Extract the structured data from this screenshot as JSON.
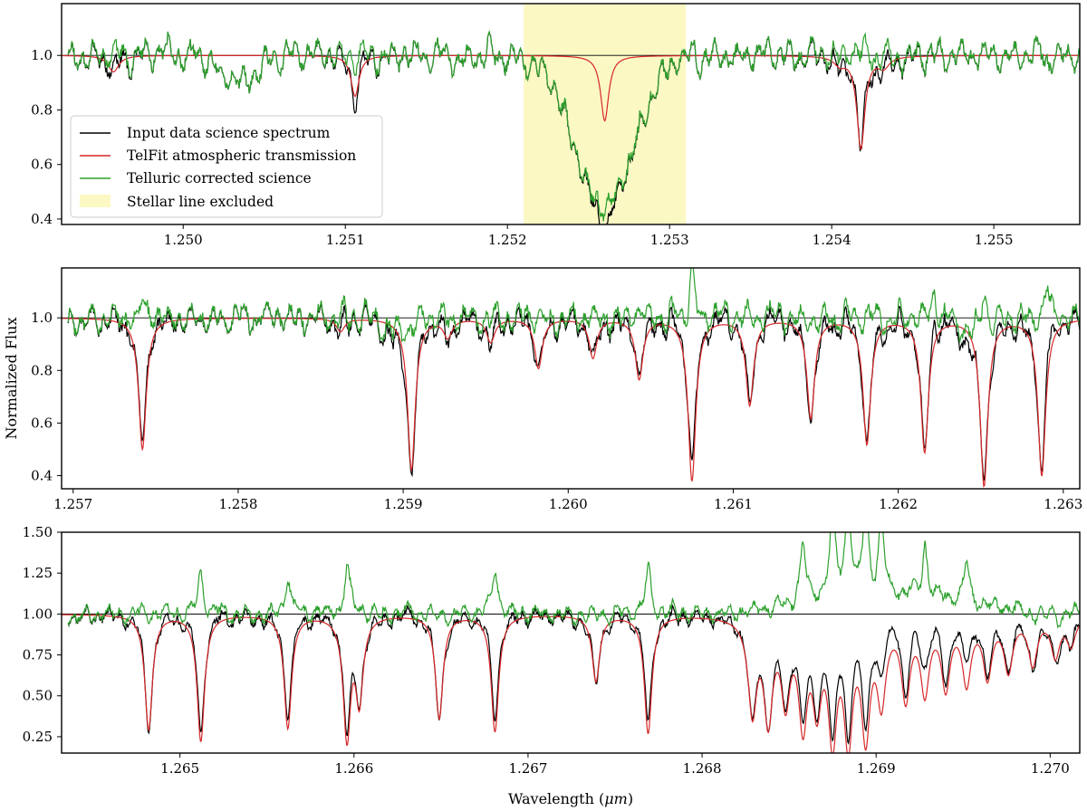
{
  "figure": {
    "ylabel": "Normalized Flux",
    "xlabel": "Wavelength (",
    "xlabel_unit": "μm",
    "xlabel_close": ")"
  },
  "legend": {
    "entries": [
      {
        "label": "Input data science spectrum",
        "color": "#000000"
      },
      {
        "label": "TelFit atmospheric transmission",
        "color": "#d62728"
      },
      {
        "label": "Telluric corrected science",
        "color": "#2ca02c"
      },
      {
        "label": "Stellar line excluded",
        "color": "#fdfbc8"
      }
    ]
  },
  "colors": {
    "data": "#000000",
    "model": "#d62728",
    "corrected": "#2ca02c",
    "excluded": "#fbf8c4"
  },
  "chart_data": [
    {
      "type": "line",
      "title": "",
      "xlim": [
        1.24925,
        1.25553
      ],
      "ylim": [
        0.38,
        1.19
      ],
      "xticks": [
        1.25,
        1.251,
        1.252,
        1.253,
        1.254,
        1.255
      ],
      "xtick_labels": [
        "1.250",
        "1.251",
        "1.252",
        "1.253",
        "1.254",
        "1.255"
      ],
      "yticks": [
        0.4,
        0.6,
        0.8,
        1.0
      ],
      "ytick_labels": [
        "0.4",
        "0.6",
        "0.8",
        "1.0"
      ],
      "excluded_region": [
        1.2521,
        1.2531
      ],
      "telluric_lines": [
        {
          "x": 1.24957,
          "depth": 0.06,
          "width": 4e-05
        },
        {
          "x": 1.25106,
          "depth": 0.15,
          "width": 3e-05
        },
        {
          "x": 1.2526,
          "depth": 0.24,
          "width": 3e-05
        },
        {
          "x": 1.25405,
          "depth": 0.03,
          "width": 4e-05
        },
        {
          "x": 1.25418,
          "depth": 0.34,
          "width": 3e-05
        },
        {
          "x": 1.25432,
          "depth": 0.04,
          "width": 4e-05
        }
      ],
      "stellar_lines": [
        {
          "x": 1.2526,
          "depth": 0.56,
          "width": 0.00018
        },
        {
          "x": 1.25035,
          "depth": 0.1,
          "width": 0.00012
        }
      ],
      "corrected_spikes": [],
      "noise": 0.022,
      "seed": 11,
      "continuum": 1.0,
      "series_names": [
        "Input data science spectrum",
        "TelFit atmospheric transmission",
        "Telluric corrected science"
      ]
    },
    {
      "type": "line",
      "title": "",
      "xlim": [
        1.25693,
        1.2631
      ],
      "ylim": [
        0.35,
        1.19
      ],
      "xticks": [
        1.257,
        1.258,
        1.259,
        1.26,
        1.261,
        1.262,
        1.263
      ],
      "xtick_labels": [
        "1.257",
        "1.258",
        "1.259",
        "1.260",
        "1.261",
        "1.262",
        "1.263"
      ],
      "yticks": [
        0.4,
        0.6,
        0.8,
        1.0
      ],
      "ytick_labels": [
        "0.4",
        "0.6",
        "0.8",
        "1.0"
      ],
      "ylabel": "Normalized Flux",
      "telluric_lines": [
        {
          "x": 1.25742,
          "depth": 0.5,
          "width": 2.8e-05
        },
        {
          "x": 1.25862,
          "depth": 0.05,
          "width": 3e-05
        },
        {
          "x": 1.25905,
          "depth": 0.58,
          "width": 2.8e-05
        },
        {
          "x": 1.25927,
          "depth": 0.07,
          "width": 3e-05
        },
        {
          "x": 1.25953,
          "depth": 0.09,
          "width": 3e-05
        },
        {
          "x": 1.25982,
          "depth": 0.19,
          "width": 2.8e-05
        },
        {
          "x": 1.26015,
          "depth": 0.15,
          "width": 2.8e-05
        },
        {
          "x": 1.26043,
          "depth": 0.23,
          "width": 2.8e-05
        },
        {
          "x": 1.26075,
          "depth": 0.62,
          "width": 2.8e-05
        },
        {
          "x": 1.2611,
          "depth": 0.33,
          "width": 2.8e-05
        },
        {
          "x": 1.26147,
          "depth": 0.38,
          "width": 2.8e-05
        },
        {
          "x": 1.26181,
          "depth": 0.48,
          "width": 2.8e-05
        },
        {
          "x": 1.26216,
          "depth": 0.51,
          "width": 2.8e-05
        },
        {
          "x": 1.26252,
          "depth": 0.64,
          "width": 2.8e-05
        },
        {
          "x": 1.26287,
          "depth": 0.6,
          "width": 2.8e-05
        }
      ],
      "stellar_lines": [
        {
          "x": 1.25895,
          "depth": 0.06,
          "width": 8e-05
        },
        {
          "x": 1.26245,
          "depth": 0.05,
          "width": 0.0001
        }
      ],
      "corrected_spikes": [
        {
          "x": 1.25742,
          "height": 0.09
        },
        {
          "x": 1.26075,
          "height": 0.18
        },
        {
          "x": 1.26222,
          "height": 0.1
        },
        {
          "x": 1.26252,
          "height": 0.16
        },
        {
          "x": 1.2629,
          "height": 0.12
        }
      ],
      "noise": 0.022,
      "seed": 23,
      "continuum": 1.0,
      "series_names": [
        "Input data science spectrum",
        "TelFit atmospheric transmission",
        "Telluric corrected science"
      ]
    },
    {
      "type": "line",
      "title": "",
      "xlim": [
        1.26432,
        1.27017
      ],
      "ylim": [
        0.15,
        1.5
      ],
      "xticks": [
        1.265,
        1.266,
        1.267,
        1.268,
        1.269,
        1.27
      ],
      "xtick_labels": [
        "1.265",
        "1.266",
        "1.267",
        "1.268",
        "1.269",
        "1.270"
      ],
      "yticks": [
        0.25,
        0.5,
        0.75,
        1.0,
        1.25,
        1.5
      ],
      "ytick_labels": [
        "0.25",
        "0.50",
        "0.75",
        "1.00",
        "1.25",
        "1.50"
      ],
      "xlabel": "Wavelength (μm)",
      "telluric_lines": [
        {
          "x": 1.26482,
          "depth": 0.71,
          "width": 2.6e-05
        },
        {
          "x": 1.26512,
          "depth": 0.78,
          "width": 2.6e-05
        },
        {
          "x": 1.26562,
          "depth": 0.7,
          "width": 2.6e-05
        },
        {
          "x": 1.26596,
          "depth": 0.79,
          "width": 2.6e-05
        },
        {
          "x": 1.26603,
          "depth": 0.55,
          "width": 2.6e-05
        },
        {
          "x": 1.26649,
          "depth": 0.64,
          "width": 2.6e-05
        },
        {
          "x": 1.26681,
          "depth": 0.72,
          "width": 2.6e-05
        },
        {
          "x": 1.26739,
          "depth": 0.41,
          "width": 2.6e-05
        },
        {
          "x": 1.26769,
          "depth": 0.73,
          "width": 2.6e-05
        },
        {
          "x": 1.26829,
          "depth": 0.62,
          "width": 3e-05
        },
        {
          "x": 1.26838,
          "depth": 0.68,
          "width": 3e-05
        },
        {
          "x": 1.26848,
          "depth": 0.55,
          "width": 3e-05
        },
        {
          "x": 1.26858,
          "depth": 0.72,
          "width": 3e-05
        },
        {
          "x": 1.26866,
          "depth": 0.6,
          "width": 3e-05
        },
        {
          "x": 1.26875,
          "depth": 0.84,
          "width": 3e-05
        },
        {
          "x": 1.26884,
          "depth": 0.85,
          "width": 3e-05
        },
        {
          "x": 1.26894,
          "depth": 0.8,
          "width": 3e-05
        },
        {
          "x": 1.26903,
          "depth": 0.55,
          "width": 3e-05
        },
        {
          "x": 1.26917,
          "depth": 0.52,
          "width": 3e-05
        },
        {
          "x": 1.26928,
          "depth": 0.48,
          "width": 3e-05
        },
        {
          "x": 1.2694,
          "depth": 0.45,
          "width": 3e-05
        },
        {
          "x": 1.26952,
          "depth": 0.42,
          "width": 3e-05
        },
        {
          "x": 1.26964,
          "depth": 0.38,
          "width": 3e-05
        },
        {
          "x": 1.26976,
          "depth": 0.34,
          "width": 3e-05
        },
        {
          "x": 1.2699,
          "depth": 0.3,
          "width": 3e-05
        },
        {
          "x": 1.27003,
          "depth": 0.25,
          "width": 3e-05
        },
        {
          "x": 1.27012,
          "depth": 0.18,
          "width": 3e-05
        }
      ],
      "stellar_lines": [],
      "corrected_spikes": [
        {
          "x": 1.26512,
          "height": 0.24
        },
        {
          "x": 1.26562,
          "height": 0.22
        },
        {
          "x": 1.26596,
          "height": 0.3
        },
        {
          "x": 1.26681,
          "height": 0.3
        },
        {
          "x": 1.26769,
          "height": 0.26
        },
        {
          "x": 1.26858,
          "height": 0.35
        },
        {
          "x": 1.26875,
          "height": 0.55
        },
        {
          "x": 1.26884,
          "height": 0.6
        },
        {
          "x": 1.26894,
          "height": 0.55
        },
        {
          "x": 1.26903,
          "height": 0.45
        },
        {
          "x": 1.26928,
          "height": 0.3
        },
        {
          "x": 1.26952,
          "height": 0.22
        }
      ],
      "broad_bump": {
        "start": 1.2682,
        "end": 1.2699,
        "height": 0.12
      },
      "noise": 0.025,
      "seed": 37,
      "continuum": 1.0,
      "series_names": [
        "Input data science spectrum",
        "TelFit atmospheric transmission",
        "Telluric corrected science"
      ]
    }
  ]
}
